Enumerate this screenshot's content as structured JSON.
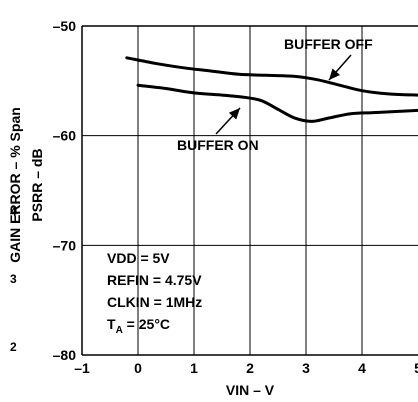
{
  "chart_data": {
    "type": "line",
    "xlabel": "VIN – V",
    "ylabel_outer": "GAIN ERROR – % Span",
    "ylabel_inner": "PSRR – dB",
    "xlim": [
      -1,
      5
    ],
    "ylim": [
      -80,
      -50
    ],
    "xticks": [
      "–1",
      "0",
      "1",
      "2",
      "3",
      "4",
      "5"
    ],
    "yticks": [
      "–50",
      "–60",
      "–70",
      "–80"
    ],
    "grid": true,
    "series": [
      {
        "name": "BUFFER OFF",
        "x": [
          -0.2,
          0.3,
          0.8,
          1.3,
          1.8,
          2.3,
          2.8,
          3.2,
          3.6,
          4.0,
          4.5,
          5.0
        ],
        "y": [
          -52.9,
          -53.4,
          -53.8,
          -54.1,
          -54.4,
          -54.5,
          -54.6,
          -54.9,
          -55.4,
          -55.9,
          -56.2,
          -56.3
        ]
      },
      {
        "name": "BUFFER ON",
        "x": [
          0.0,
          0.5,
          1.0,
          1.5,
          1.9,
          2.2,
          2.5,
          2.8,
          3.1,
          3.4,
          3.8,
          4.2,
          4.6,
          5.0
        ],
        "y": [
          -55.4,
          -55.7,
          -56.1,
          -56.3,
          -56.5,
          -56.8,
          -57.6,
          -58.4,
          -58.7,
          -58.4,
          -58.0,
          -57.9,
          -57.8,
          -57.7
        ]
      }
    ],
    "annotations": {
      "buffer_off_label": "BUFFER OFF",
      "buffer_on_label": "BUFFER ON",
      "conditions": [
        "VDD = 5V",
        "REFIN = 4.75V",
        "CLKIN = 1MHz",
        "T",
        "A",
        " = 25°C"
      ]
    }
  },
  "stray_marks": [
    "4",
    "3",
    "2"
  ]
}
